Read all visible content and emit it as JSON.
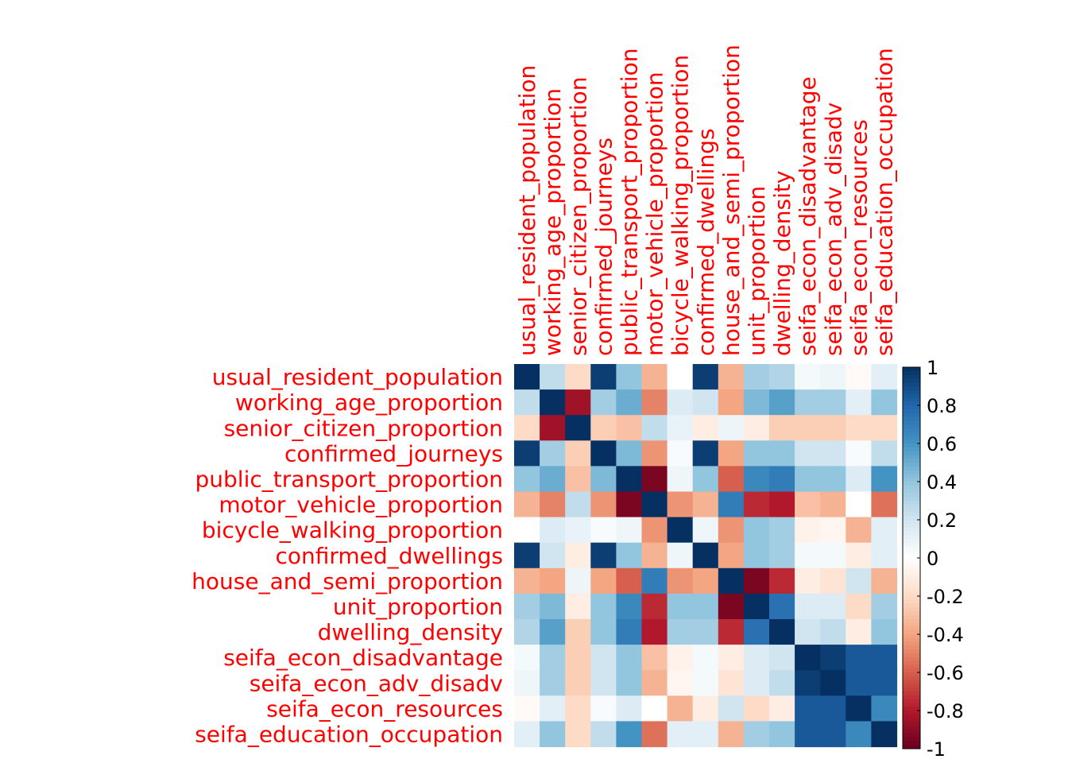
{
  "chart_data": {
    "type": "heatmap",
    "title": "",
    "variables": [
      "usual_resident_population",
      "working_age_proportion",
      "senior_citizen_proportion",
      "confirmed_journeys",
      "public_transport_proportion",
      "motor_vehicle_proportion",
      "bicycle_walking_proportion",
      "confirmed_dwellings",
      "house_and_semi_proportion",
      "unit_proportion",
      "dwelling_density",
      "seifa_econ_disadvantage",
      "seifa_econ_adv_disadv",
      "seifa_econ_resources",
      "seifa_education_occupation"
    ],
    "values": [
      [
        1.0,
        0.25,
        -0.2,
        0.95,
        0.4,
        -0.35,
        0.0,
        0.95,
        -0.35,
        0.35,
        0.3,
        0.05,
        0.07,
        -0.03,
        0.12
      ],
      [
        0.25,
        1.0,
        -0.85,
        0.35,
        0.5,
        -0.5,
        0.15,
        0.2,
        -0.4,
        0.45,
        0.55,
        0.35,
        0.35,
        0.12,
        0.4
      ],
      [
        -0.2,
        -0.85,
        1.0,
        -0.25,
        -0.3,
        0.25,
        0.1,
        -0.1,
        0.08,
        -0.1,
        -0.25,
        -0.25,
        -0.25,
        -0.2,
        -0.2
      ],
      [
        0.95,
        0.35,
        -0.25,
        1.0,
        0.45,
        -0.45,
        0.03,
        0.95,
        -0.4,
        0.4,
        0.4,
        0.2,
        0.2,
        0.03,
        0.25
      ],
      [
        0.4,
        0.5,
        -0.3,
        0.45,
        1.0,
        -0.95,
        0.07,
        0.4,
        -0.6,
        0.65,
        0.7,
        0.4,
        0.4,
        0.15,
        0.6
      ],
      [
        -0.35,
        -0.5,
        0.25,
        -0.45,
        -0.95,
        1.0,
        -0.45,
        -0.35,
        0.7,
        -0.75,
        -0.8,
        -0.3,
        -0.35,
        0.0,
        -0.55
      ],
      [
        0.0,
        0.15,
        0.1,
        0.03,
        0.07,
        -0.45,
        1.0,
        0.07,
        -0.45,
        0.4,
        0.35,
        -0.07,
        -0.05,
        -0.35,
        0.12
      ],
      [
        0.95,
        0.2,
        -0.1,
        0.95,
        0.4,
        -0.35,
        0.07,
        1.0,
        -0.4,
        0.4,
        0.35,
        0.05,
        0.05,
        -0.1,
        0.12
      ],
      [
        -0.35,
        -0.4,
        0.08,
        -0.4,
        -0.6,
        0.7,
        -0.45,
        -0.4,
        1.0,
        -0.95,
        -0.75,
        -0.1,
        -0.15,
        0.2,
        -0.35
      ],
      [
        0.35,
        0.45,
        -0.1,
        0.4,
        0.65,
        -0.75,
        0.4,
        0.4,
        -0.95,
        1.0,
        0.75,
        0.15,
        0.15,
        -0.2,
        0.35
      ],
      [
        0.3,
        0.55,
        -0.25,
        0.4,
        0.7,
        -0.8,
        0.35,
        0.35,
        -0.75,
        0.75,
        1.0,
        0.2,
        0.25,
        -0.1,
        0.4
      ],
      [
        0.05,
        0.35,
        -0.25,
        0.2,
        0.4,
        -0.3,
        -0.07,
        0.05,
        -0.1,
        0.15,
        0.2,
        1.0,
        0.95,
        0.85,
        0.85
      ],
      [
        0.07,
        0.35,
        -0.25,
        0.2,
        0.4,
        -0.35,
        -0.05,
        0.05,
        -0.15,
        0.15,
        0.25,
        0.95,
        1.0,
        0.85,
        0.85
      ],
      [
        -0.03,
        0.12,
        -0.2,
        0.03,
        0.15,
        0.0,
        -0.35,
        -0.1,
        0.2,
        -0.2,
        -0.1,
        0.85,
        0.85,
        1.0,
        0.65
      ],
      [
        0.12,
        0.4,
        -0.2,
        0.25,
        0.6,
        -0.55,
        0.12,
        0.12,
        -0.35,
        0.35,
        0.4,
        0.85,
        0.85,
        0.65,
        1.0
      ]
    ],
    "colorbar": {
      "range": [
        -1,
        1
      ],
      "ticks": [
        "1",
        "0.8",
        "0.6",
        "0.4",
        "0.2",
        "0",
        "-0.2",
        "-0.4",
        "-0.6",
        "-0.8",
        "-1"
      ],
      "colors": [
        "#67001F",
        "#B2182B",
        "#D6604D",
        "#F4A582",
        "#FDDBC7",
        "#FFFFFF",
        "#D1E5F0",
        "#92C5DE",
        "#4393C3",
        "#2166AC",
        "#053061"
      ]
    },
    "label_color": "#ff0000",
    "grid": false,
    "legend_position": "right"
  }
}
